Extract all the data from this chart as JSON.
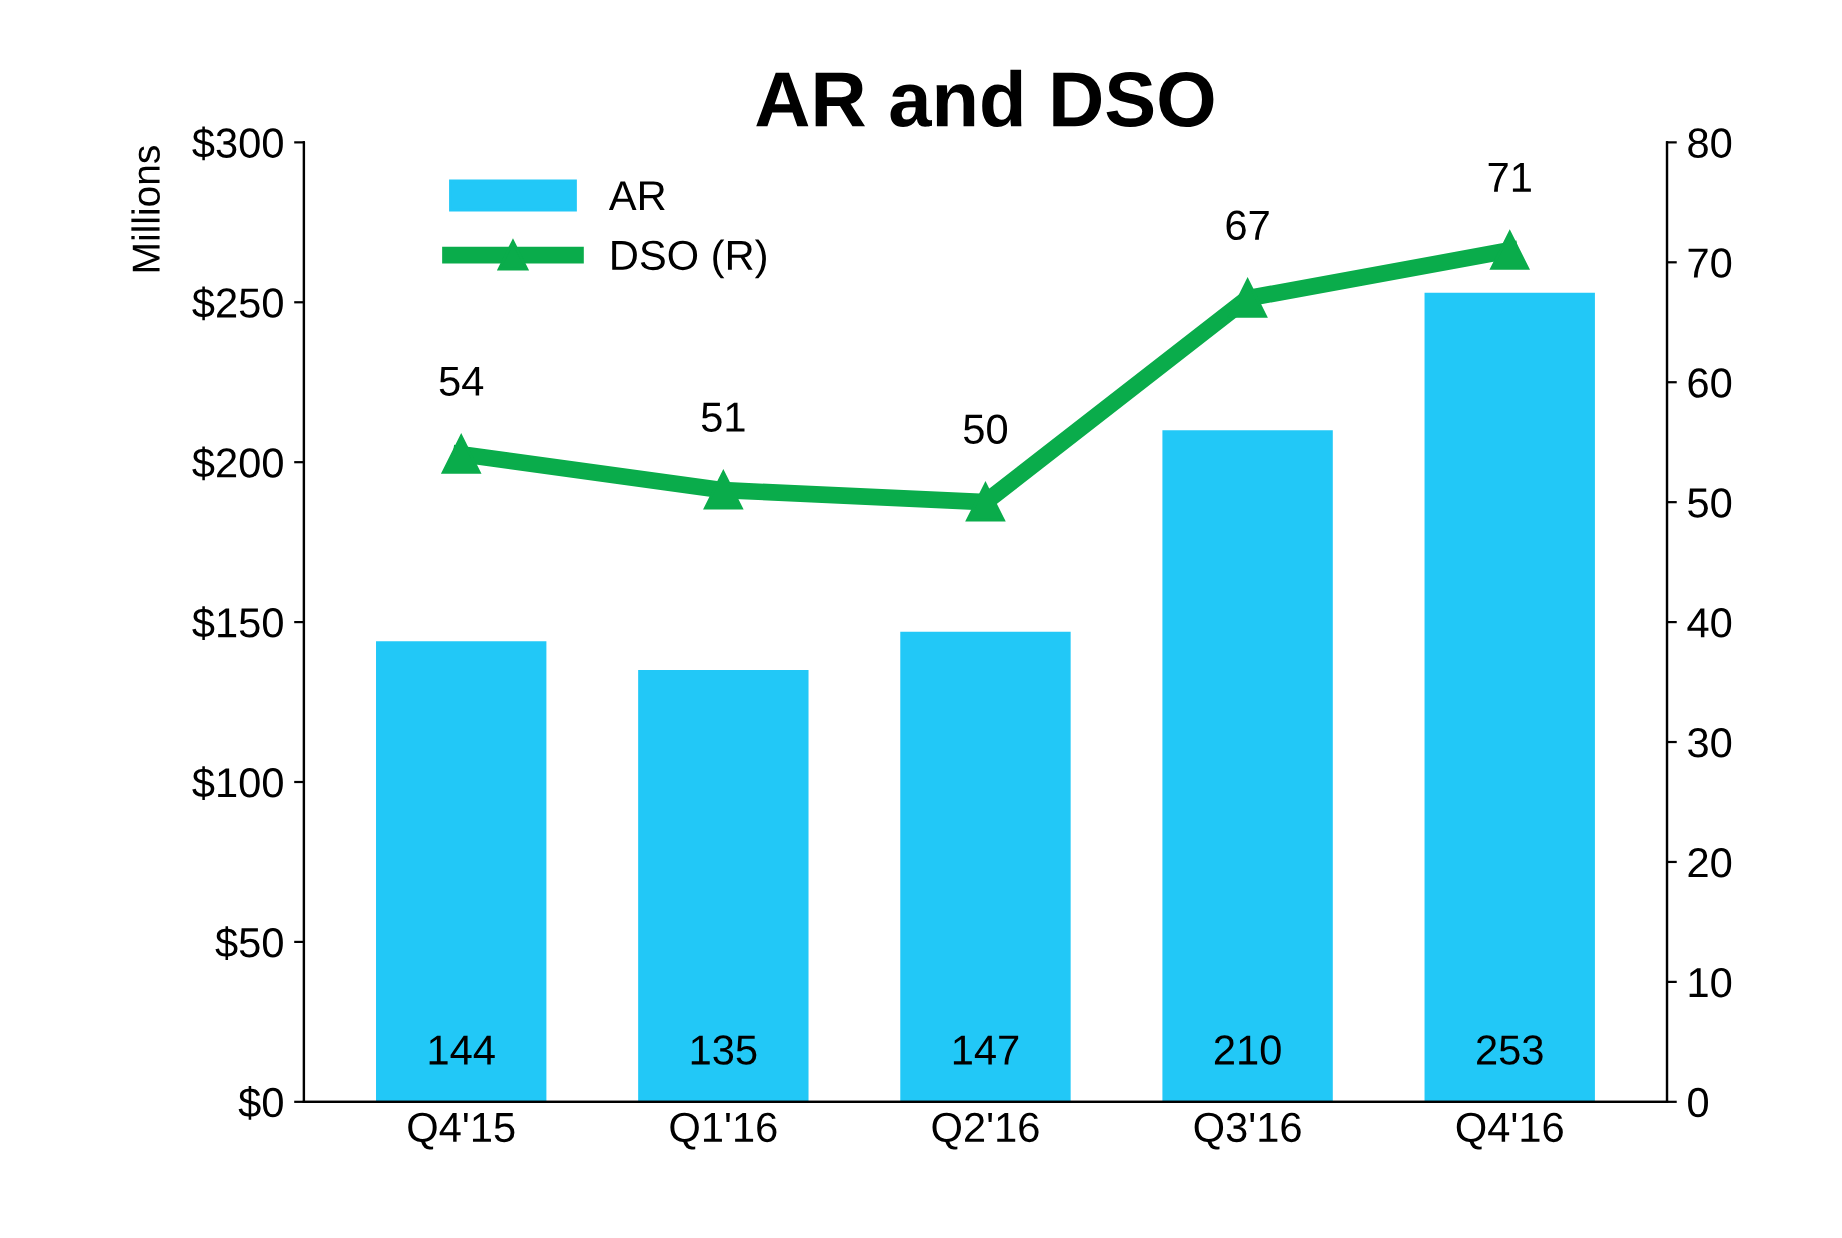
{
  "chart_data": {
    "type": "bar",
    "title": "AR and DSO",
    "ylabel": "Millions",
    "categories": [
      "Q4'15",
      "Q1'16",
      "Q2'16",
      "Q3'16",
      "Q4'16"
    ],
    "series": [
      {
        "name": "AR",
        "color": "#22c8f7",
        "values": [
          144,
          135,
          147,
          210,
          253
        ]
      },
      {
        "name": "DSO (R)",
        "type": "line",
        "axis": "y2",
        "color": "#0aac4b",
        "marker": "triangle",
        "values": [
          54,
          51,
          50,
          67,
          71
        ]
      }
    ],
    "ylim": [
      0,
      300
    ],
    "yticks": [
      {
        "value": 0,
        "label": "$0"
      },
      {
        "value": 50,
        "label": "$50"
      },
      {
        "value": 100,
        "label": "$100"
      },
      {
        "value": 150,
        "label": "$150"
      },
      {
        "value": 200,
        "label": "$200"
      },
      {
        "value": 250,
        "label": "$250"
      },
      {
        "value": 300,
        "label": "$300"
      }
    ],
    "y2lim": [
      0,
      80
    ],
    "y2ticks": [
      0,
      10,
      20,
      30,
      40,
      50,
      60,
      70,
      80
    ],
    "data_labels": true,
    "grid": false,
    "legend": "top left"
  }
}
